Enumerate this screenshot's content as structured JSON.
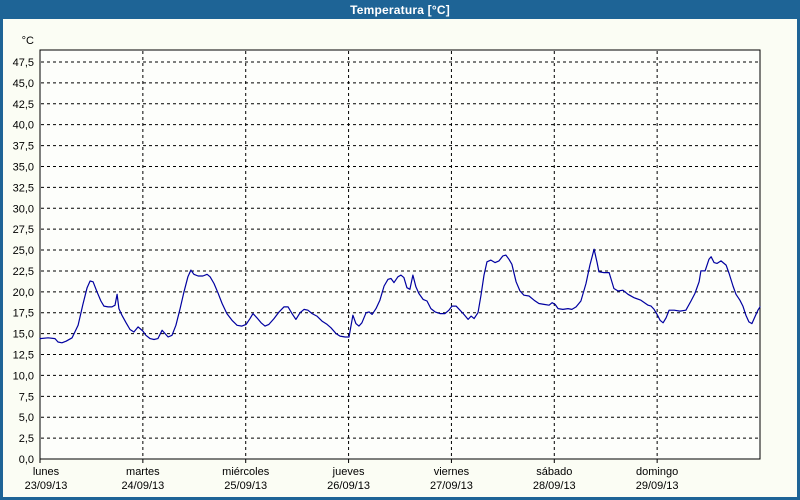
{
  "window": {
    "title": "Temperatura [°C]"
  },
  "colors": {
    "titlebar": "#1e6496",
    "titlebar_text": "#ffffff",
    "window_border": "#1e6496",
    "background": "#fbfdf4",
    "plot_bg": "#fdfefb",
    "axis": "#000000",
    "grid": "#000000",
    "label": "#000000",
    "line": "#0000a0"
  },
  "chart_data": {
    "type": "line",
    "title": "Temperatura [°C]",
    "ylabel": "°C",
    "grid": "dashed",
    "legend": "none",
    "y_axis": {
      "min": 0,
      "max": 47.5,
      "step": 2.5,
      "decimal_separator": ","
    },
    "x_axis": {
      "total_hours": 168,
      "tick_hours": [
        0,
        24,
        48,
        72,
        96,
        120,
        144
      ],
      "days": [
        {
          "name": "lunes",
          "date": "23/09/13"
        },
        {
          "name": "martes",
          "date": "24/09/13"
        },
        {
          "name": "miércoles",
          "date": "25/09/13"
        },
        {
          "name": "jueves",
          "date": "26/09/13"
        },
        {
          "name": "viernes",
          "date": "27/09/13"
        },
        {
          "name": "sábado",
          "date": "28/09/13"
        },
        {
          "name": "domingo",
          "date": "29/09/13"
        }
      ]
    },
    "series": [
      {
        "name": "Temperatura",
        "color": "#0000a0",
        "points": [
          [
            0,
            14.4
          ],
          [
            1.9,
            14.5
          ],
          [
            3.5,
            14.4
          ],
          [
            4.2,
            14.0
          ],
          [
            5.1,
            13.9
          ],
          [
            6.1,
            14.1
          ],
          [
            7.5,
            14.5
          ],
          [
            8.9,
            16.0
          ],
          [
            10,
            18.5
          ],
          [
            11,
            20.5
          ],
          [
            11.7,
            21.3
          ],
          [
            12.4,
            21.2
          ],
          [
            13.3,
            20.0
          ],
          [
            14.2,
            18.9
          ],
          [
            14.9,
            18.3
          ],
          [
            15.9,
            18.2
          ],
          [
            16.8,
            18.2
          ],
          [
            17.5,
            18.4
          ],
          [
            18,
            19.7
          ],
          [
            18.4,
            18.0
          ],
          [
            19.1,
            17.2
          ],
          [
            20.1,
            16.3
          ],
          [
            21,
            15.5
          ],
          [
            21.9,
            15.2
          ],
          [
            22.9,
            15.8
          ],
          [
            23.6,
            15.5
          ],
          [
            24,
            15.3
          ],
          [
            24.7,
            14.8
          ],
          [
            25.7,
            14.4
          ],
          [
            26.6,
            14.3
          ],
          [
            27.5,
            14.4
          ],
          [
            28.5,
            15.4
          ],
          [
            29.2,
            15.0
          ],
          [
            29.9,
            14.6
          ],
          [
            30.8,
            14.8
          ],
          [
            31.7,
            16.0
          ],
          [
            32.7,
            18.0
          ],
          [
            33.6,
            20.0
          ],
          [
            34.5,
            21.8
          ],
          [
            35.2,
            22.6
          ],
          [
            35.9,
            22.1
          ],
          [
            36.9,
            21.9
          ],
          [
            38,
            21.9
          ],
          [
            39,
            22.1
          ],
          [
            39.7,
            21.8
          ],
          [
            40.6,
            21.0
          ],
          [
            41.5,
            19.9
          ],
          [
            42.5,
            18.6
          ],
          [
            43.6,
            17.4
          ],
          [
            44.8,
            16.6
          ],
          [
            46,
            16.0
          ],
          [
            47.1,
            15.9
          ],
          [
            48.1,
            16.1
          ],
          [
            49,
            16.8
          ],
          [
            49.7,
            17.4
          ],
          [
            50.6,
            16.9
          ],
          [
            51.6,
            16.3
          ],
          [
            52.5,
            15.9
          ],
          [
            53.4,
            16.1
          ],
          [
            54.6,
            16.8
          ],
          [
            55.8,
            17.6
          ],
          [
            56.9,
            18.2
          ],
          [
            57.9,
            18.2
          ],
          [
            58.8,
            17.4
          ],
          [
            59.7,
            16.7
          ],
          [
            60.7,
            17.5
          ],
          [
            61.6,
            17.9
          ],
          [
            62.5,
            17.8
          ],
          [
            63.5,
            17.4
          ],
          [
            64.6,
            17.1
          ],
          [
            65.8,
            16.5
          ],
          [
            67,
            16.1
          ],
          [
            67.9,
            15.7
          ],
          [
            69.1,
            15.0
          ],
          [
            70,
            14.7
          ],
          [
            71.2,
            14.6
          ],
          [
            72.1,
            14.6
          ],
          [
            73,
            17.2
          ],
          [
            73.7,
            16.2
          ],
          [
            74.4,
            15.9
          ],
          [
            75.1,
            16.3
          ],
          [
            76.1,
            17.5
          ],
          [
            76.8,
            17.6
          ],
          [
            77.5,
            17.3
          ],
          [
            78.4,
            18.0
          ],
          [
            79.3,
            19.0
          ],
          [
            80.3,
            20.7
          ],
          [
            81.2,
            21.5
          ],
          [
            81.9,
            21.6
          ],
          [
            82.6,
            21.1
          ],
          [
            83.5,
            21.8
          ],
          [
            84.2,
            22.0
          ],
          [
            84.9,
            21.7
          ],
          [
            85.6,
            20.5
          ],
          [
            86.3,
            20.3
          ],
          [
            87,
            22.0
          ],
          [
            87.7,
            20.6
          ],
          [
            88.4,
            19.8
          ],
          [
            89.4,
            19.1
          ],
          [
            90.3,
            18.9
          ],
          [
            91.2,
            18.0
          ],
          [
            92.2,
            17.6
          ],
          [
            93.3,
            17.4
          ],
          [
            94.5,
            17.4
          ],
          [
            95.4,
            17.8
          ],
          [
            96.1,
            18.3
          ],
          [
            97.1,
            18.3
          ],
          [
            98,
            17.8
          ],
          [
            98.9,
            17.3
          ],
          [
            99.9,
            16.7
          ],
          [
            100.6,
            17.1
          ],
          [
            101.3,
            16.8
          ],
          [
            102.2,
            17.5
          ],
          [
            102.9,
            19.6
          ],
          [
            103.6,
            22.0
          ],
          [
            104.3,
            23.6
          ],
          [
            105.2,
            23.8
          ],
          [
            106.2,
            23.5
          ],
          [
            107.1,
            23.7
          ],
          [
            108,
            24.3
          ],
          [
            108.7,
            24.4
          ],
          [
            109.4,
            23.9
          ],
          [
            110.1,
            23.3
          ],
          [
            111.1,
            21.2
          ],
          [
            112,
            20.1
          ],
          [
            112.9,
            19.6
          ],
          [
            114.1,
            19.5
          ],
          [
            115.3,
            19.0
          ],
          [
            116.4,
            18.6
          ],
          [
            117.6,
            18.5
          ],
          [
            118.8,
            18.4
          ],
          [
            119.5,
            18.7
          ],
          [
            120.2,
            18.5
          ],
          [
            120.9,
            18.0
          ],
          [
            122,
            17.9
          ],
          [
            123.2,
            18.0
          ],
          [
            124.1,
            17.9
          ],
          [
            125.1,
            18.2
          ],
          [
            126.2,
            18.9
          ],
          [
            127.4,
            21.0
          ],
          [
            128.3,
            23.2
          ],
          [
            129.3,
            25.1
          ],
          [
            130,
            23.5
          ],
          [
            130.4,
            22.4
          ],
          [
            131.6,
            22.3
          ],
          [
            132.8,
            22.3
          ],
          [
            133.2,
            21.6
          ],
          [
            133.9,
            20.4
          ],
          [
            134.9,
            20.1
          ],
          [
            136,
            20.2
          ],
          [
            137.2,
            19.7
          ],
          [
            138.6,
            19.3
          ],
          [
            140.2,
            19.0
          ],
          [
            141.9,
            18.4
          ],
          [
            142.6,
            18.3
          ],
          [
            143.3,
            17.9
          ],
          [
            144,
            17.3
          ],
          [
            144.7,
            16.6
          ],
          [
            145.4,
            16.3
          ],
          [
            146.1,
            16.9
          ],
          [
            146.8,
            17.8
          ],
          [
            148,
            17.8
          ],
          [
            149.3,
            17.7
          ],
          [
            150.7,
            17.8
          ],
          [
            151.9,
            18.9
          ],
          [
            152.8,
            19.8
          ],
          [
            153.8,
            21.2
          ],
          [
            154.2,
            22.5
          ],
          [
            155.2,
            22.5
          ],
          [
            156.1,
            23.9
          ],
          [
            156.6,
            24.2
          ],
          [
            157.3,
            23.5
          ],
          [
            158,
            23.4
          ],
          [
            158.9,
            23.7
          ],
          [
            160.1,
            23.2
          ],
          [
            160.8,
            22.2
          ],
          [
            161.7,
            20.7
          ],
          [
            162.4,
            19.7
          ],
          [
            163.3,
            19.0
          ],
          [
            164,
            18.3
          ],
          [
            164.7,
            17.2
          ],
          [
            165.4,
            16.4
          ],
          [
            166.1,
            16.2
          ],
          [
            166.8,
            17.0
          ],
          [
            167.5,
            17.8
          ],
          [
            168,
            18.2
          ]
        ]
      }
    ]
  }
}
